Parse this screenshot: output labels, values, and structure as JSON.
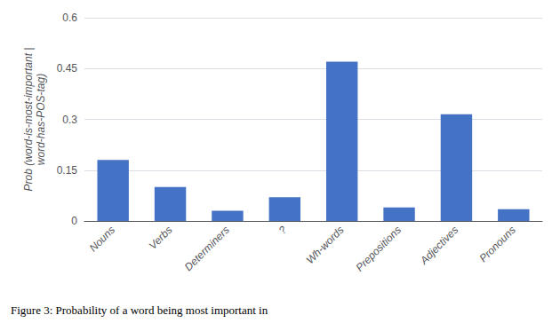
{
  "chart_data": {
    "type": "bar",
    "categories": [
      "Nouns",
      "Verbs",
      "Determiners",
      "?",
      "Wh-words",
      "Prepositions",
      "Adjectives",
      "Pronouns"
    ],
    "values": [
      0.18,
      0.1,
      0.03,
      0.07,
      0.47,
      0.04,
      0.315,
      0.035
    ],
    "color": "#4472C4",
    "ylabel": "Prob (word-is-most-important |\nword-has-POS-tag)",
    "caption": "Figure 3: Probability of a word being most important in",
    "ylim": [
      0,
      0.6
    ],
    "yticks": [
      0,
      0.15,
      0.3,
      0.45,
      0.6
    ],
    "grid": true
  }
}
